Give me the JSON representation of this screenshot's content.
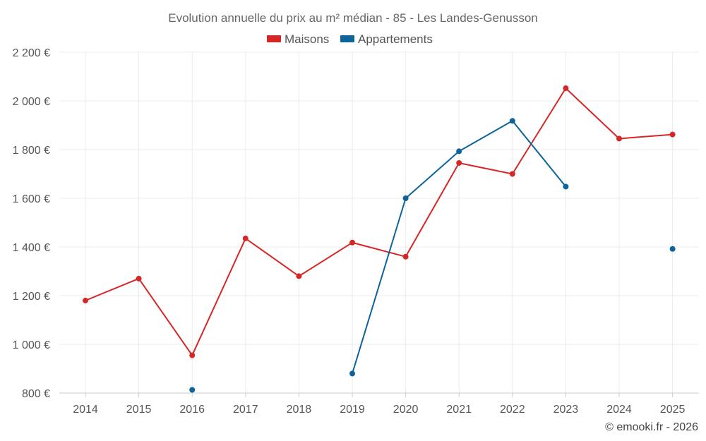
{
  "chart_data": {
    "type": "line",
    "title": "Evolution annuelle du prix au m² médian - 85 - Les Landes-Genusson",
    "xlabel": "",
    "ylabel": "",
    "categories": [
      "2014",
      "2015",
      "2016",
      "2017",
      "2018",
      "2019",
      "2020",
      "2021",
      "2022",
      "2023",
      "2024",
      "2025"
    ],
    "ylim": [
      800,
      2200
    ],
    "yticks": [
      {
        "value": 800,
        "label": "800 €"
      },
      {
        "value": 1000,
        "label": "1 000 €"
      },
      {
        "value": 1200,
        "label": "1 200 €"
      },
      {
        "value": 1400,
        "label": "1 400 €"
      },
      {
        "value": 1600,
        "label": "1 600 €"
      },
      {
        "value": 1800,
        "label": "1 800 €"
      },
      {
        "value": 2000,
        "label": "2 000 €"
      },
      {
        "value": 2200,
        "label": "2 200 €"
      }
    ],
    "grid": true,
    "legend_position": "top-center",
    "series": [
      {
        "name": "Maisons",
        "color": "#d62728",
        "values": [
          1180,
          1270,
          955,
          1435,
          1280,
          1418,
          1360,
          1745,
          1700,
          2052,
          1845,
          1862
        ]
      },
      {
        "name": "Appartements",
        "color": "#0e6399",
        "values": [
          null,
          null,
          813,
          null,
          null,
          880,
          1600,
          1793,
          1918,
          1648,
          null,
          1392
        ]
      }
    ]
  },
  "credit": "© emooki.fr - 2026"
}
